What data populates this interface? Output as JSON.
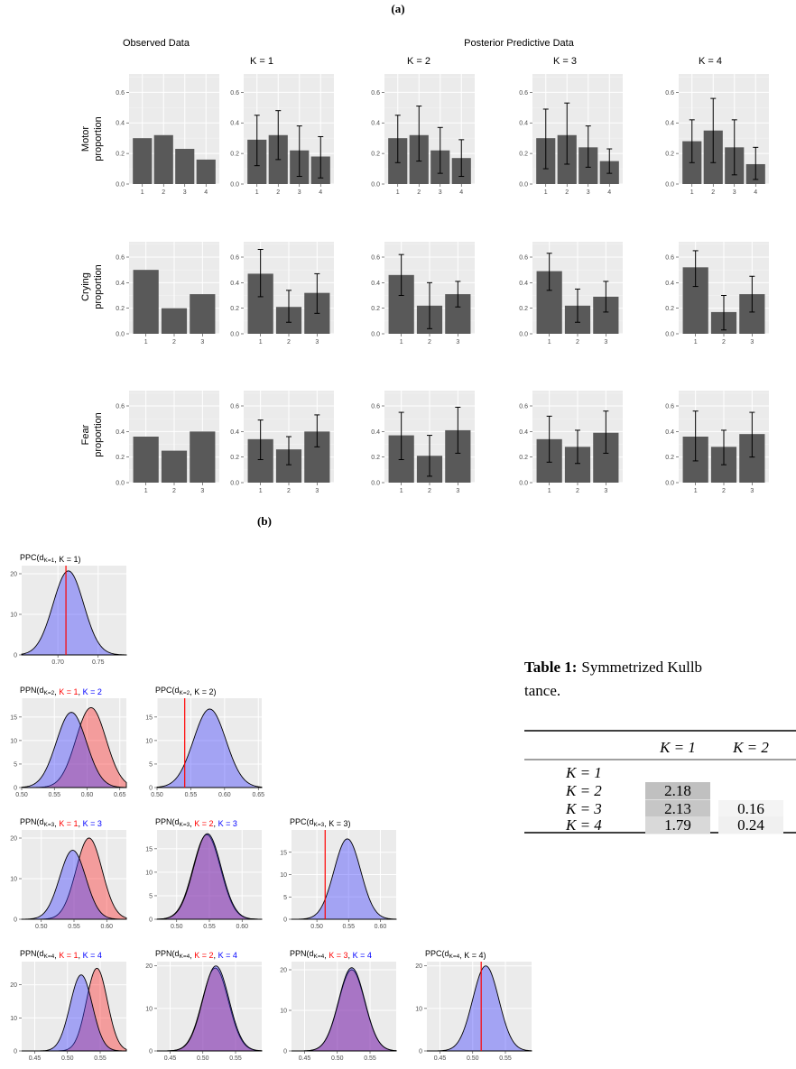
{
  "figure": {
    "label_a": "(a)",
    "label_b": "(b)"
  },
  "part_a": {
    "observed_header": "Observed Data",
    "posterior_header": "Posterior Predictive Data",
    "k_headers": [
      "K = 1",
      "K = 2",
      "K = 3",
      "K = 4"
    ],
    "y_tick_labels": [
      "0.0",
      "0.2",
      "0.4",
      "0.6"
    ],
    "y_axis_unit": "proportion",
    "rows": [
      {
        "name": "Motor",
        "ylabel": "proportion",
        "categories": [
          "1",
          "2",
          "3",
          "4"
        ]
      },
      {
        "name": "Crying",
        "ylabel": "proportion",
        "categories": [
          "1",
          "2",
          "3"
        ]
      },
      {
        "name": "Fear",
        "ylabel": "proportion",
        "categories": [
          "1",
          "2",
          "3"
        ]
      }
    ]
  },
  "chart_data": [
    {
      "type": "bar",
      "panel": "observed",
      "row": "Motor",
      "categories": [
        "1",
        "2",
        "3",
        "4"
      ],
      "values": [
        0.3,
        0.32,
        0.23,
        0.16
      ],
      "ylim": [
        0,
        0.72
      ]
    },
    {
      "type": "bar",
      "panel": "K = 1",
      "row": "Motor",
      "categories": [
        "1",
        "2",
        "3",
        "4"
      ],
      "values": [
        0.29,
        0.32,
        0.22,
        0.18
      ],
      "error_low": [
        0.12,
        0.16,
        0.05,
        0.04
      ],
      "error_high": [
        0.45,
        0.48,
        0.38,
        0.31
      ],
      "ylim": [
        0,
        0.72
      ]
    },
    {
      "type": "bar",
      "panel": "K = 2",
      "row": "Motor",
      "categories": [
        "1",
        "2",
        "3",
        "4"
      ],
      "values": [
        0.3,
        0.32,
        0.22,
        0.17
      ],
      "error_low": [
        0.14,
        0.15,
        0.07,
        0.05
      ],
      "error_high": [
        0.45,
        0.51,
        0.37,
        0.29
      ],
      "ylim": [
        0,
        0.72
      ]
    },
    {
      "type": "bar",
      "panel": "K = 3",
      "row": "Motor",
      "categories": [
        "1",
        "2",
        "3",
        "4"
      ],
      "values": [
        0.3,
        0.32,
        0.24,
        0.15
      ],
      "error_low": [
        0.1,
        0.13,
        0.11,
        0.07
      ],
      "error_high": [
        0.49,
        0.53,
        0.38,
        0.23
      ],
      "ylim": [
        0,
        0.72
      ]
    },
    {
      "type": "bar",
      "panel": "K = 4",
      "row": "Motor",
      "categories": [
        "1",
        "2",
        "3",
        "4"
      ],
      "values": [
        0.28,
        0.35,
        0.24,
        0.13
      ],
      "error_low": [
        0.14,
        0.14,
        0.06,
        0.03
      ],
      "error_high": [
        0.42,
        0.56,
        0.42,
        0.24
      ],
      "ylim": [
        0,
        0.72
      ]
    },
    {
      "type": "bar",
      "panel": "observed",
      "row": "Crying",
      "categories": [
        "1",
        "2",
        "3"
      ],
      "values": [
        0.5,
        0.2,
        0.31
      ],
      "ylim": [
        0,
        0.72
      ]
    },
    {
      "type": "bar",
      "panel": "K = 1",
      "row": "Crying",
      "categories": [
        "1",
        "2",
        "3"
      ],
      "values": [
        0.47,
        0.21,
        0.32
      ],
      "error_low": [
        0.29,
        0.09,
        0.16
      ],
      "error_high": [
        0.66,
        0.34,
        0.47
      ],
      "ylim": [
        0,
        0.72
      ]
    },
    {
      "type": "bar",
      "panel": "K = 2",
      "row": "Crying",
      "categories": [
        "1",
        "2",
        "3"
      ],
      "values": [
        0.46,
        0.22,
        0.31
      ],
      "error_low": [
        0.3,
        0.04,
        0.21
      ],
      "error_high": [
        0.62,
        0.4,
        0.41
      ],
      "ylim": [
        0,
        0.72
      ]
    },
    {
      "type": "bar",
      "panel": "K = 3",
      "row": "Crying",
      "categories": [
        "1",
        "2",
        "3"
      ],
      "values": [
        0.49,
        0.22,
        0.29
      ],
      "error_low": [
        0.34,
        0.09,
        0.17
      ],
      "error_high": [
        0.63,
        0.35,
        0.41
      ],
      "ylim": [
        0,
        0.72
      ]
    },
    {
      "type": "bar",
      "panel": "K = 4",
      "row": "Crying",
      "categories": [
        "1",
        "2",
        "3"
      ],
      "values": [
        0.52,
        0.17,
        0.31
      ],
      "error_low": [
        0.37,
        0.03,
        0.17
      ],
      "error_high": [
        0.65,
        0.3,
        0.45
      ],
      "ylim": [
        0,
        0.72
      ]
    },
    {
      "type": "bar",
      "panel": "observed",
      "row": "Fear",
      "categories": [
        "1",
        "2",
        "3"
      ],
      "values": [
        0.36,
        0.25,
        0.4
      ],
      "ylim": [
        0,
        0.72
      ]
    },
    {
      "type": "bar",
      "panel": "K = 1",
      "row": "Fear",
      "categories": [
        "1",
        "2",
        "3"
      ],
      "values": [
        0.34,
        0.26,
        0.4
      ],
      "error_low": [
        0.18,
        0.14,
        0.28
      ],
      "error_high": [
        0.49,
        0.36,
        0.53
      ],
      "ylim": [
        0,
        0.72
      ]
    },
    {
      "type": "bar",
      "panel": "K = 2",
      "row": "Fear",
      "categories": [
        "1",
        "2",
        "3"
      ],
      "values": [
        0.37,
        0.21,
        0.41
      ],
      "error_low": [
        0.18,
        0.05,
        0.23
      ],
      "error_high": [
        0.55,
        0.37,
        0.59
      ],
      "ylim": [
        0,
        0.72
      ]
    },
    {
      "type": "bar",
      "panel": "K = 3",
      "row": "Fear",
      "categories": [
        "1",
        "2",
        "3"
      ],
      "values": [
        0.34,
        0.28,
        0.39
      ],
      "error_low": [
        0.16,
        0.15,
        0.23
      ],
      "error_high": [
        0.52,
        0.41,
        0.56
      ],
      "ylim": [
        0,
        0.72
      ]
    },
    {
      "type": "bar",
      "panel": "K = 4",
      "row": "Fear",
      "categories": [
        "1",
        "2",
        "3"
      ],
      "values": [
        0.36,
        0.28,
        0.38
      ],
      "error_low": [
        0.17,
        0.14,
        0.2
      ],
      "error_high": [
        0.56,
        0.41,
        0.55
      ],
      "ylim": [
        0,
        0.72
      ]
    },
    {
      "type": "area",
      "title": "PPC(d_{K=1}, K = 1)",
      "xlim": [
        0.655,
        0.785
      ],
      "ylim": [
        0,
        22
      ],
      "x_ticks": [
        0.7,
        0.75
      ],
      "y_ticks": [
        0,
        10,
        20
      ],
      "observed_line": 0.71,
      "series": [
        {
          "color": "blue",
          "mean": 0.713,
          "sd": 0.019,
          "peak": 20.7
        }
      ]
    },
    {
      "type": "area",
      "title": "PPN(d_{K=2}, K = 1, K = 2)",
      "xlim": [
        0.5,
        0.66
      ],
      "ylim": [
        0,
        19
      ],
      "x_ticks": [
        0.5,
        0.55,
        0.6,
        0.65
      ],
      "y_ticks": [
        0,
        5,
        10,
        15
      ],
      "series": [
        {
          "color": "red",
          "mean": 0.606,
          "sd": 0.023,
          "peak": 17.0
        },
        {
          "color": "blue",
          "mean": 0.576,
          "sd": 0.023,
          "peak": 16.0
        }
      ]
    },
    {
      "type": "area",
      "title": "PPC(d_{K=2}, K = 2)",
      "xlim": [
        0.5,
        0.655
      ],
      "ylim": [
        0,
        19
      ],
      "x_ticks": [
        0.5,
        0.55,
        0.6,
        0.65
      ],
      "y_ticks": [
        0,
        5,
        10,
        15
      ],
      "observed_line": 0.541,
      "series": [
        {
          "color": "blue",
          "mean": 0.578,
          "sd": 0.024,
          "peak": 16.7
        }
      ]
    },
    {
      "type": "area",
      "title": "PPN(d_{K=3}, K = 1, K = 3)",
      "xlim": [
        0.47,
        0.63
      ],
      "ylim": [
        0,
        22
      ],
      "x_ticks": [
        0.5,
        0.55,
        0.6
      ],
      "y_ticks": [
        0,
        10,
        20
      ],
      "series": [
        {
          "color": "red",
          "mean": 0.573,
          "sd": 0.02,
          "peak": 20.0
        },
        {
          "color": "blue",
          "mean": 0.548,
          "sd": 0.02,
          "peak": 17.0
        }
      ]
    },
    {
      "type": "area",
      "title": "PPN(d_{K=3}, K = 2, K = 3)",
      "xlim": [
        0.47,
        0.63
      ],
      "ylim": [
        0,
        19
      ],
      "x_ticks": [
        0.5,
        0.55,
        0.6
      ],
      "y_ticks": [
        0,
        5,
        10,
        15
      ],
      "series": [
        {
          "color": "red",
          "mean": 0.546,
          "sd": 0.021,
          "peak": 18.0
        },
        {
          "color": "blue",
          "mean": 0.547,
          "sd": 0.021,
          "peak": 18.2
        }
      ]
    },
    {
      "type": "area",
      "title": "PPC(d_{K=3}, K = 3)",
      "xlim": [
        0.46,
        0.625
      ],
      "ylim": [
        0,
        20
      ],
      "x_ticks": [
        0.5,
        0.55,
        0.6
      ],
      "y_ticks": [
        0,
        5,
        10,
        15
      ],
      "observed_line": 0.513,
      "series": [
        {
          "color": "blue",
          "mean": 0.548,
          "sd": 0.021,
          "peak": 18.0
        }
      ]
    },
    {
      "type": "area",
      "title": "PPN(d_{K=4}, K = 1, K = 4)",
      "xlim": [
        0.43,
        0.59
      ],
      "ylim": [
        0,
        27
      ],
      "x_ticks": [
        0.45,
        0.5,
        0.55
      ],
      "y_ticks": [
        0,
        10,
        20
      ],
      "series": [
        {
          "color": "red",
          "mean": 0.545,
          "sd": 0.016,
          "peak": 25.0
        },
        {
          "color": "blue",
          "mean": 0.521,
          "sd": 0.017,
          "peak": 23.0
        }
      ]
    },
    {
      "type": "area",
      "title": "PPN(d_{K=4}, K = 2, K = 4)",
      "xlim": [
        0.43,
        0.59
      ],
      "ylim": [
        0,
        21
      ],
      "x_ticks": [
        0.45,
        0.5,
        0.55
      ],
      "y_ticks": [
        0,
        10,
        20
      ],
      "series": [
        {
          "color": "red",
          "mean": 0.519,
          "sd": 0.02,
          "peak": 19.5
        },
        {
          "color": "blue",
          "mean": 0.52,
          "sd": 0.02,
          "peak": 20.0
        }
      ]
    },
    {
      "type": "area",
      "title": "PPN(d_{K=4}, K = 3, K = 4)",
      "xlim": [
        0.43,
        0.59
      ],
      "ylim": [
        0,
        22
      ],
      "x_ticks": [
        0.45,
        0.5,
        0.55
      ],
      "y_ticks": [
        0,
        10,
        20
      ],
      "series": [
        {
          "color": "red",
          "mean": 0.522,
          "sd": 0.02,
          "peak": 20.0
        },
        {
          "color": "blue",
          "mean": 0.522,
          "sd": 0.02,
          "peak": 20.5
        }
      ]
    },
    {
      "type": "area",
      "title": "PPC(d_{K=4}, K = 4)",
      "xlim": [
        0.43,
        0.59
      ],
      "ylim": [
        0,
        21
      ],
      "x_ticks": [
        0.45,
        0.5,
        0.55
      ],
      "y_ticks": [
        0,
        10,
        20
      ],
      "observed_line": 0.513,
      "series": [
        {
          "color": "blue",
          "mean": 0.52,
          "sd": 0.02,
          "peak": 20.0
        }
      ]
    }
  ],
  "table": {
    "caption_bold": "Table 1:",
    "caption_text_line1": "Symmetrized Kullb",
    "caption_text_line2": "tance.",
    "col_headers": [
      "K = 1",
      "K = 2"
    ],
    "rows": [
      {
        "label": "K = 1",
        "cells": [
          "",
          ""
        ]
      },
      {
        "label": "K = 2",
        "cells": [
          "2.18",
          ""
        ]
      },
      {
        "label": "K = 3",
        "cells": [
          "2.13",
          "0.16"
        ]
      },
      {
        "label": "K = 4",
        "cells": [
          "1.79",
          "0.24"
        ]
      }
    ],
    "cell_shades": {
      "r1c0": "#c0c0c0",
      "r2c0": "#c6c6c6",
      "r3c0": "#d9d9d9",
      "r2c1": "#f4f4f4",
      "r3c1": "#f0f0f0"
    }
  },
  "colors": {
    "panel_bg": "#ebebeb",
    "bar": "#595959",
    "red_fill": "#f08a8a",
    "blue_fill": "#8f8fff",
    "overlap": "#9a55b0",
    "obs_line": "#ff0000",
    "red_text": "#ff0000",
    "blue_text": "#0000ff"
  }
}
